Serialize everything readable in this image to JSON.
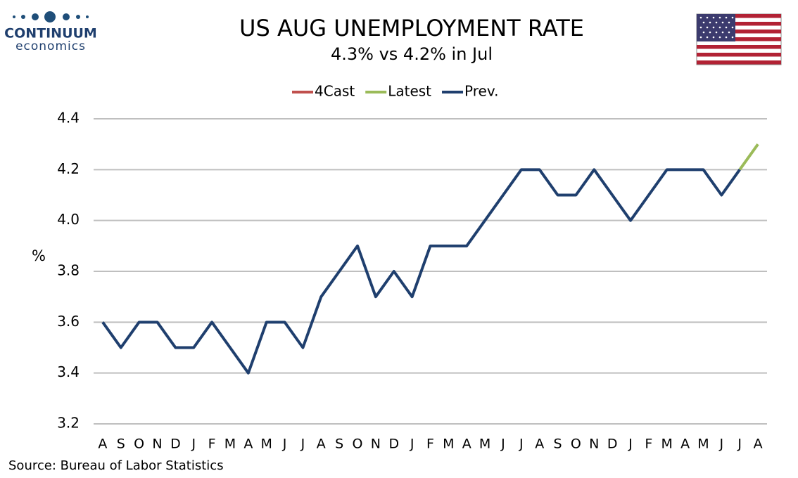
{
  "logo": {
    "name": "CONTINUUM",
    "sub": "economics"
  },
  "chart_data": {
    "type": "line",
    "title": "US AUG UNEMPLOYMENT RATE",
    "subtitle": "4.3% vs 4.2% in Jul",
    "y_label": "%",
    "source": "Source: Bureau of Labor Statistics",
    "categories": [
      "A",
      "S",
      "O",
      "N",
      "D",
      "J",
      "F",
      "M",
      "A",
      "M",
      "J",
      "J",
      "A",
      "S",
      "O",
      "N",
      "D",
      "J",
      "F",
      "M",
      "A",
      "M",
      "J",
      "J",
      "A",
      "S",
      "O",
      "N",
      "D",
      "J",
      "F",
      "M",
      "A",
      "M",
      "J",
      "J",
      "A"
    ],
    "series": [
      {
        "name": "4Cast",
        "color": "#c0504d",
        "values": [
          null,
          null,
          null,
          null,
          null,
          null,
          null,
          null,
          null,
          null,
          null,
          null,
          null,
          null,
          null,
          null,
          null,
          null,
          null,
          null,
          null,
          null,
          null,
          null,
          null,
          null,
          null,
          null,
          null,
          null,
          null,
          null,
          null,
          null,
          null,
          null,
          null
        ]
      },
      {
        "name": "Latest",
        "color": "#9bbb59",
        "values": [
          null,
          null,
          null,
          null,
          null,
          null,
          null,
          null,
          null,
          null,
          null,
          null,
          null,
          null,
          null,
          null,
          null,
          null,
          null,
          null,
          null,
          null,
          null,
          null,
          null,
          null,
          null,
          null,
          null,
          null,
          null,
          null,
          null,
          null,
          null,
          4.2,
          4.3
        ]
      },
      {
        "name": "Prev.",
        "color": "#1f3f6e",
        "values": [
          3.6,
          3.5,
          3.6,
          3.6,
          3.5,
          3.5,
          3.6,
          3.5,
          3.4,
          3.6,
          3.6,
          3.5,
          3.7,
          3.8,
          3.9,
          3.7,
          3.8,
          3.7,
          3.9,
          3.9,
          3.9,
          4.0,
          4.1,
          4.2,
          4.2,
          4.1,
          4.1,
          4.2,
          4.1,
          4.0,
          4.1,
          4.2,
          4.2,
          4.2,
          4.1,
          4.2,
          null
        ]
      }
    ],
    "ylim": [
      3.2,
      4.4
    ],
    "yticks": [
      3.2,
      3.4,
      3.6,
      3.8,
      {
        "value": 4,
        "label": "4.0"
      },
      4.2,
      4.4
    ],
    "grid": true,
    "legend": "top"
  }
}
